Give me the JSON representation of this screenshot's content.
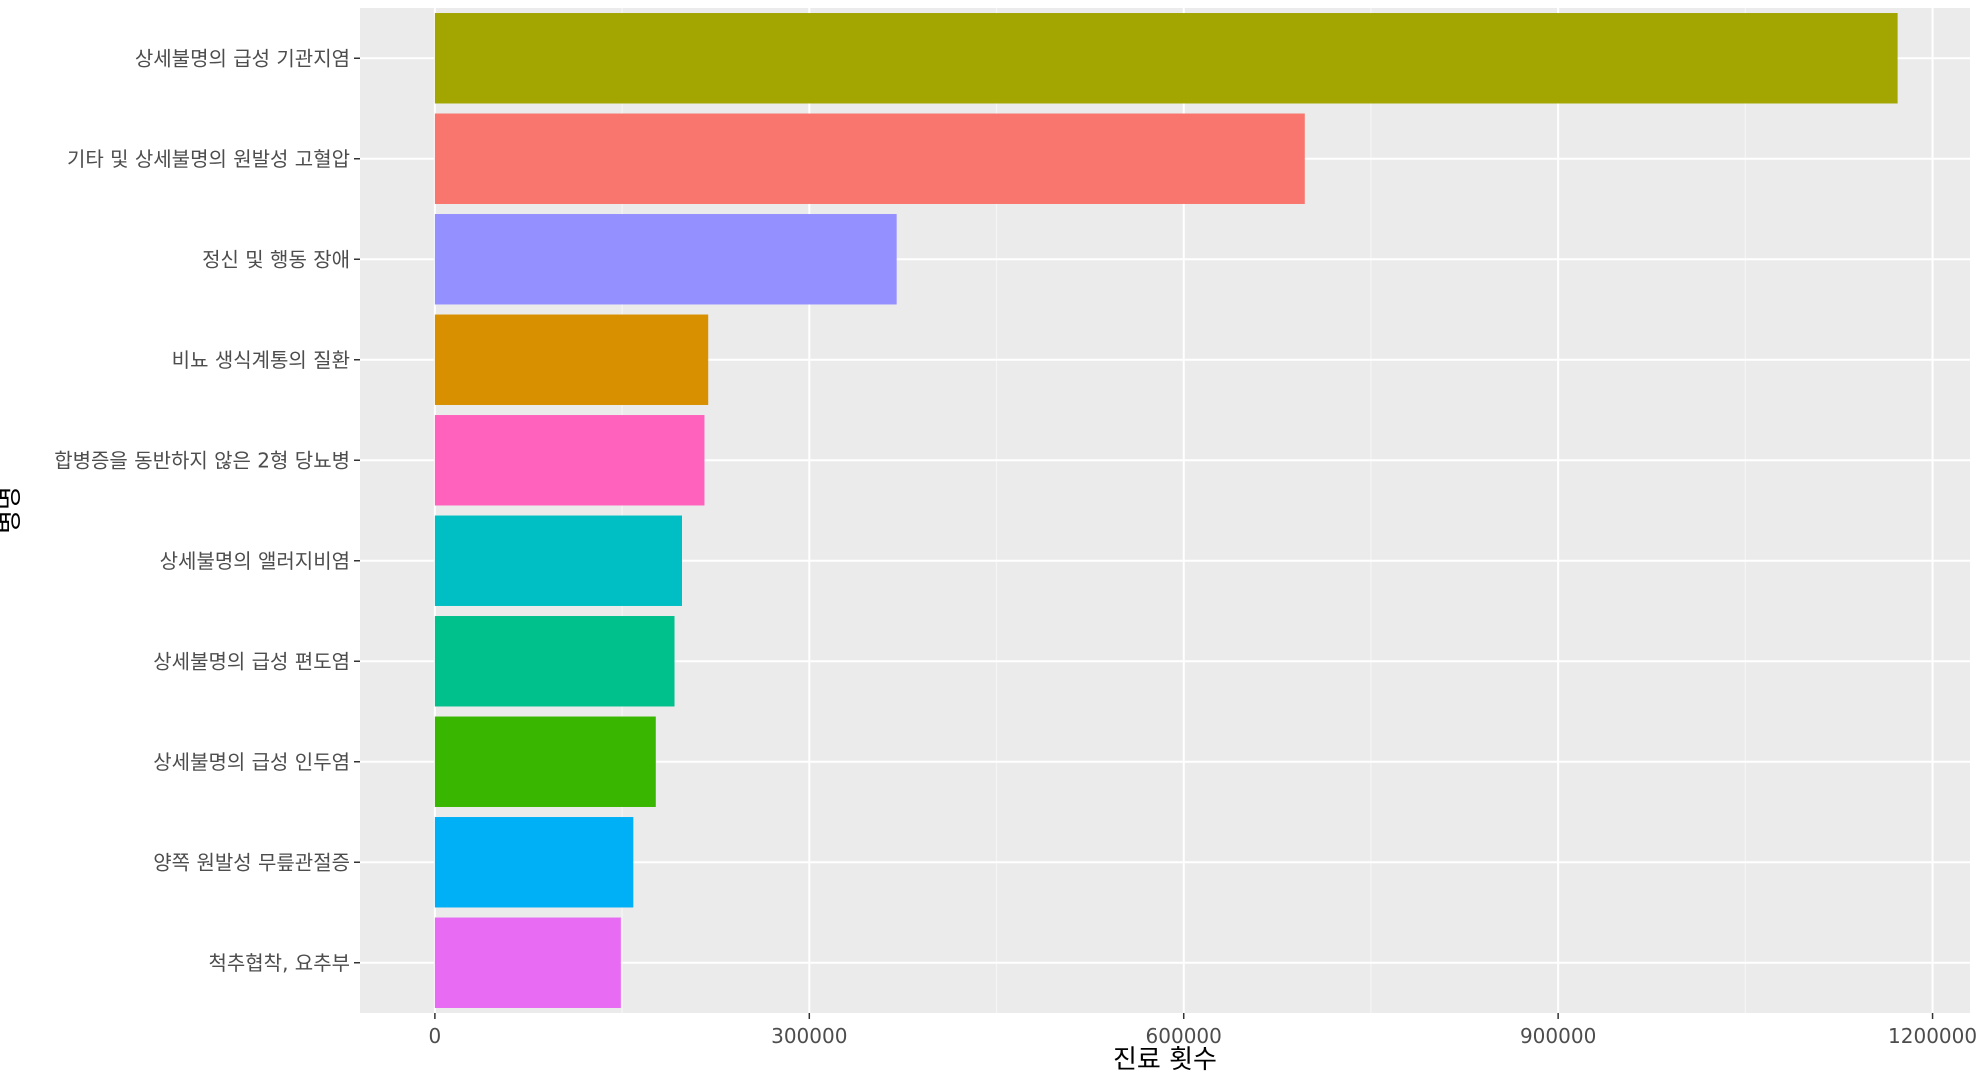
{
  "chart_data": {
    "type": "bar",
    "orientation": "horizontal",
    "xlabel": "진료 횟수",
    "ylabel": "병명",
    "xlim": [
      -60000,
      1230000
    ],
    "x_ticks": [
      0,
      300000,
      600000,
      900000,
      1200000
    ],
    "x_tick_labels": [
      "0",
      "300000",
      "600000",
      "900000",
      "1200000"
    ],
    "grid": true,
    "legend": "none",
    "categories": [
      "상세불명의 급성 기관지염",
      "기타 및 상세불명의 원발성 고혈압",
      "정신 및 행동 장애",
      "비뇨 생식계통의 질환",
      "합병증을 동반하지 않은 2형 당뇨병",
      "상세불명의 앨러지비염",
      "상세불명의 급성 편도염",
      "상세불명의 급성 인두염",
      "양쪽 원발성 무릎관절증",
      "척추협착, 요추부"
    ],
    "values": [
      1172000,
      697000,
      370000,
      219000,
      216000,
      198000,
      192000,
      177000,
      159000,
      149000
    ],
    "colors": [
      "#A3A500",
      "#F8766D",
      "#9590FF",
      "#D89000",
      "#FF62BC",
      "#00BFC4",
      "#00C08B",
      "#39B600",
      "#00B0F6",
      "#E76BF3"
    ]
  }
}
